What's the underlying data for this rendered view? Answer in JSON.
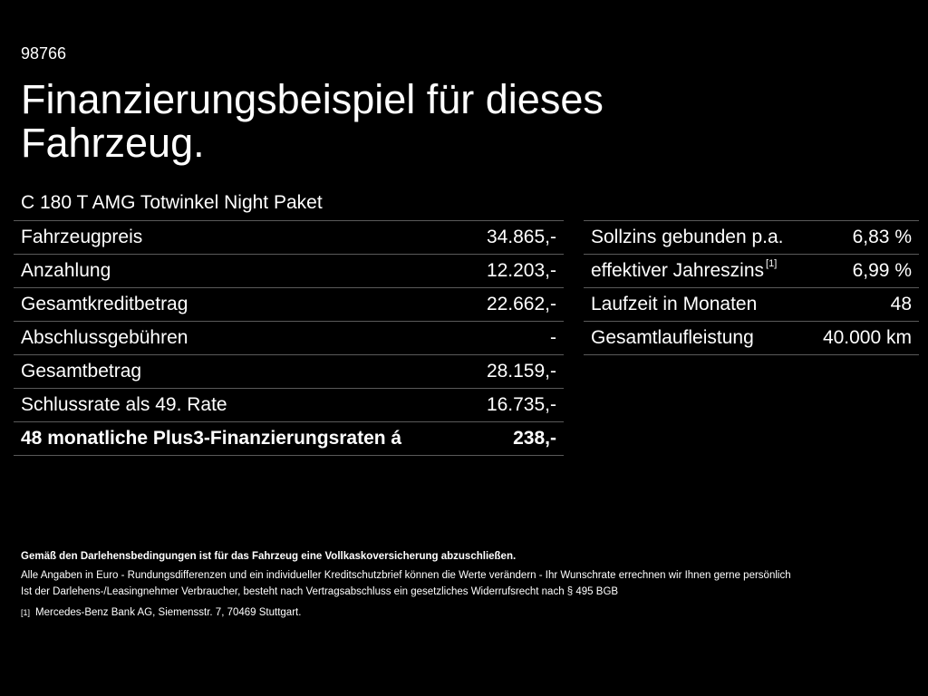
{
  "ref_id": "98766",
  "title": "Finanzierungsbeispiel für dieses Fahrzeug.",
  "model": "C 180 T AMG Totwinkel Night Paket",
  "left_rows": [
    {
      "label": "Fahrzeugpreis",
      "value": "34.865,-"
    },
    {
      "label": "Anzahlung",
      "value": "12.203,-"
    },
    {
      "label": "Gesamtkreditbetrag",
      "value": "22.662,-"
    },
    {
      "label": "Abschlussgebühren",
      "value": "-"
    },
    {
      "label": "Gesamtbetrag",
      "value": "28.159,-"
    },
    {
      "label": "Schlussrate als 49. Rate",
      "value": "16.735,-"
    },
    {
      "label": "48 monatliche Plus3-Finanzierungsraten á",
      "value": "238,-"
    }
  ],
  "right_rows": [
    {
      "label": "Sollzins gebunden p.a.",
      "value": "6,83 %"
    },
    {
      "label": "effektiver Jahreszins",
      "footnote": "[1]",
      "value": "6,99 %"
    },
    {
      "label": "Laufzeit in Monaten",
      "value": "48"
    },
    {
      "label": "Gesamtlaufleistung",
      "value": "40.000 km"
    }
  ],
  "notes": {
    "insurance": "Gemäß den Darlehensbedingungen ist für das Fahrzeug eine Vollkaskoversicherung abzuschließen.",
    "disclaimer": "Alle Angaben in Euro - Rundungsdifferenzen und ein individueller Kreditschutzbrief können die Werte verändern - Ihr Wunschrate errechnen wir Ihnen gerne persönlich",
    "withdrawal": "Ist der Darlehens-/Leasingnehmer Verbraucher, besteht nach Vertragsabschluss ein gesetzliches Widerrufsrecht nach § 495 BGB",
    "footnote_mark": "[1]",
    "footnote_text": "Mercedes-Benz Bank AG, Siemensstr. 7, 70469 Stuttgart."
  }
}
